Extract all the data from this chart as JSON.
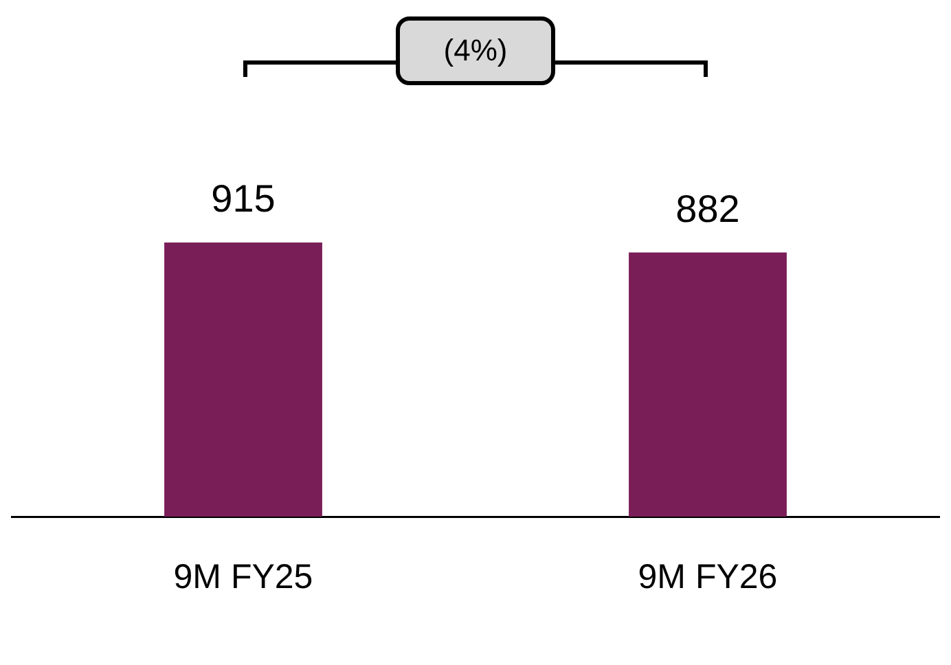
{
  "chart_data": {
    "type": "bar",
    "categories": [
      "9M FY25",
      "9M FY26"
    ],
    "values": [
      915,
      882
    ],
    "color": "#7a1e58",
    "data_labels": true,
    "grid": false,
    "legend": false,
    "tick_labels": "x",
    "annotations": [
      "(4%)"
    ]
  }
}
